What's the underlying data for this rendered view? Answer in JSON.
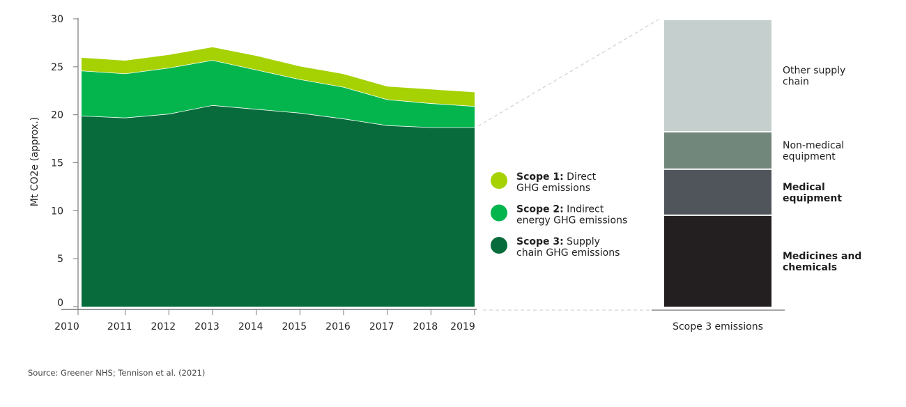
{
  "chart_data": [
    {
      "type": "area",
      "stacked": true,
      "ylabel": "Mt CO2e (approx.)",
      "xlabel": "",
      "ylim": [
        0,
        30
      ],
      "yticks": [
        0,
        5,
        10,
        15,
        20,
        25,
        30
      ],
      "x": [
        2010,
        2011,
        2012,
        2013,
        2014,
        2015,
        2016,
        2017,
        2018,
        2019
      ],
      "grid": false,
      "legend_position": "right",
      "series": [
        {
          "name": "Scope 3: Supply chain GHG emissions",
          "bold": "Scope 3:",
          "text1": " Supply",
          "text2": "chain GHG emissions",
          "color": "#086b3c",
          "values": [
            19.9,
            19.7,
            20.1,
            21.0,
            20.6,
            20.2,
            19.6,
            18.9,
            18.7,
            18.7
          ]
        },
        {
          "name": "Scope 2: Indirect energy GHG emissions",
          "bold": "Scope 2:",
          "text1": " Indirect",
          "text2": "energy GHG emissions",
          "color": "#04b54e",
          "values": [
            4.7,
            4.6,
            4.8,
            4.7,
            4.1,
            3.5,
            3.3,
            2.7,
            2.5,
            2.2
          ]
        },
        {
          "name": "Scope 1: Direct GHG emissions",
          "bold": "Scope 1:",
          "text1": " Direct",
          "text2": "GHG emissions",
          "color": "#a6d203",
          "values": [
            1.4,
            1.4,
            1.4,
            1.4,
            1.5,
            1.4,
            1.4,
            1.4,
            1.5,
            1.5
          ]
        }
      ]
    },
    {
      "type": "bar",
      "stacked": true,
      "category": "Scope 3 emissions",
      "unit": "share of scope 3 (%)",
      "segments": [
        {
          "line1": "Medicines and",
          "line2": "chemicals",
          "bold": true,
          "value": 32,
          "color": "#231f20"
        },
        {
          "line1": "Medical",
          "line2": "equipment",
          "bold": true,
          "value": 16,
          "color": "#4f555b"
        },
        {
          "line1": "Non-medical",
          "line2": "equipment",
          "bold": false,
          "value": 13,
          "color": "#72877c"
        },
        {
          "line1": "Other supply",
          "line2": "chain",
          "bold": false,
          "value": 39,
          "color": "#c5cfcd"
        }
      ]
    }
  ],
  "source": "Source: Greener NHS; Tennison et al. (2021)"
}
